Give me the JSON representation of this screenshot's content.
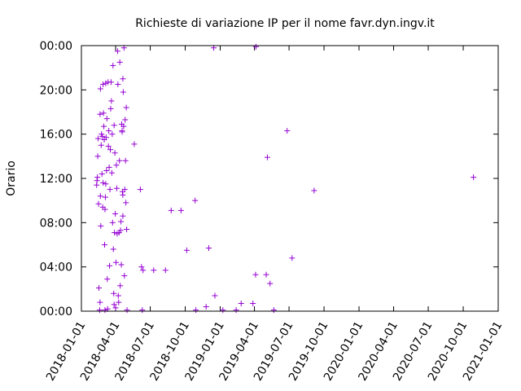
{
  "chart_data": {
    "type": "scatter",
    "title": "Richieste di variazione IP per il nome favr.dyn.ingv.it",
    "xlabel": "",
    "ylabel": "Orario",
    "xlim": [
      "2018-01-01",
      "2021-01-01"
    ],
    "ylim": [
      0,
      24
    ],
    "x_ticks": [
      "2018-01-01",
      "2018-04-01",
      "2018-07-01",
      "2018-10-01",
      "2019-01-01",
      "2019-04-01",
      "2019-07-01",
      "2019-10-01",
      "2020-01-01",
      "2020-04-01",
      "2020-07-01",
      "2020-10-01",
      "2021-01-01"
    ],
    "y_ticks": [
      "00:00",
      "04:00",
      "08:00",
      "12:00",
      "16:00",
      "20:00",
      "00:00"
    ],
    "y_tick_values": [
      0,
      4,
      8,
      12,
      16,
      20,
      24
    ],
    "grid": false,
    "marker": "+",
    "color": "#9400d3",
    "points": [
      {
        "x": "2018-02-10",
        "y": 11.4
      },
      {
        "x": "2018-02-11",
        "y": 11.8
      },
      {
        "x": "2018-02-12",
        "y": 12.1
      },
      {
        "x": "2018-02-13",
        "y": 14.0
      },
      {
        "x": "2018-02-14",
        "y": 15.6
      },
      {
        "x": "2018-02-15",
        "y": 9.7
      },
      {
        "x": "2018-02-16",
        "y": 2.1
      },
      {
        "x": "2018-02-18",
        "y": 0.1
      },
      {
        "x": "2018-02-19",
        "y": 0.8
      },
      {
        "x": "2018-02-19",
        "y": 17.8
      },
      {
        "x": "2018-02-20",
        "y": 20.1
      },
      {
        "x": "2018-02-20",
        "y": 10.4
      },
      {
        "x": "2018-02-21",
        "y": 7.7
      },
      {
        "x": "2018-02-22",
        "y": 15.0
      },
      {
        "x": "2018-02-23",
        "y": 16.0
      },
      {
        "x": "2018-02-24",
        "y": 12.4
      },
      {
        "x": "2018-02-25",
        "y": 15.8
      },
      {
        "x": "2018-02-26",
        "y": 9.4
      },
      {
        "x": "2018-02-27",
        "y": 11.6
      },
      {
        "x": "2018-02-27",
        "y": 20.5
      },
      {
        "x": "2018-02-28",
        "y": 17.9
      },
      {
        "x": "2018-03-01",
        "y": 16.7
      },
      {
        "x": "2018-03-02",
        "y": 15.5
      },
      {
        "x": "2018-03-03",
        "y": 6.0
      },
      {
        "x": "2018-03-04",
        "y": 9.2
      },
      {
        "x": "2018-03-04",
        "y": 0.1
      },
      {
        "x": "2018-03-05",
        "y": 10.3
      },
      {
        "x": "2018-03-06",
        "y": 11.5
      },
      {
        "x": "2018-03-06",
        "y": 20.6
      },
      {
        "x": "2018-03-07",
        "y": 15.7
      },
      {
        "x": "2018-03-08",
        "y": 12.7
      },
      {
        "x": "2018-03-09",
        "y": 17.4
      },
      {
        "x": "2018-03-10",
        "y": 2.9
      },
      {
        "x": "2018-03-11",
        "y": 0.2
      },
      {
        "x": "2018-03-12",
        "y": 20.7
      },
      {
        "x": "2018-03-13",
        "y": 14.9
      },
      {
        "x": "2018-03-14",
        "y": 16.3
      },
      {
        "x": "2018-03-15",
        "y": 13.0
      },
      {
        "x": "2018-03-16",
        "y": 4.1
      },
      {
        "x": "2018-03-17",
        "y": 11.0
      },
      {
        "x": "2018-03-18",
        "y": 14.6
      },
      {
        "x": "2018-03-19",
        "y": 18.3
      },
      {
        "x": "2018-03-20",
        "y": 20.7
      },
      {
        "x": "2018-03-21",
        "y": 19.0
      },
      {
        "x": "2018-03-22",
        "y": 12.5
      },
      {
        "x": "2018-03-23",
        "y": 16.0
      },
      {
        "x": "2018-03-24",
        "y": 8.0
      },
      {
        "x": "2018-03-25",
        "y": 22.2
      },
      {
        "x": "2018-03-26",
        "y": 5.6
      },
      {
        "x": "2018-03-27",
        "y": 1.6
      },
      {
        "x": "2018-03-28",
        "y": 0.6
      },
      {
        "x": "2018-03-28",
        "y": 16.8
      },
      {
        "x": "2018-03-29",
        "y": 7.1
      },
      {
        "x": "2018-03-30",
        "y": 14.3
      },
      {
        "x": "2018-03-31",
        "y": 8.8
      },
      {
        "x": "2018-04-01",
        "y": 0.3
      },
      {
        "x": "2018-04-02",
        "y": 4.4
      },
      {
        "x": "2018-04-03",
        "y": 13.2
      },
      {
        "x": "2018-04-04",
        "y": 11.1
      },
      {
        "x": "2018-04-05",
        "y": 7.0
      },
      {
        "x": "2018-04-06",
        "y": 23.5
      },
      {
        "x": "2018-04-07",
        "y": 20.5
      },
      {
        "x": "2018-04-08",
        "y": 1.4
      },
      {
        "x": "2018-04-09",
        "y": 0.8
      },
      {
        "x": "2018-04-10",
        "y": 7.1
      },
      {
        "x": "2018-04-11",
        "y": 13.6
      },
      {
        "x": "2018-04-12",
        "y": 22.5
      },
      {
        "x": "2018-04-13",
        "y": 2.3
      },
      {
        "x": "2018-04-14",
        "y": 7.3
      },
      {
        "x": "2018-04-15",
        "y": 8.1
      },
      {
        "x": "2018-04-16",
        "y": 4.2
      },
      {
        "x": "2018-04-17",
        "y": 16.9
      },
      {
        "x": "2018-04-18",
        "y": 16.3
      },
      {
        "x": "2018-04-19",
        "y": 10.8
      },
      {
        "x": "2018-04-20",
        "y": 21.0
      },
      {
        "x": "2018-04-21",
        "y": 19.8
      },
      {
        "x": "2018-04-22",
        "y": 16.7
      },
      {
        "x": "2018-04-23",
        "y": 23.8
      },
      {
        "x": "2018-04-24",
        "y": 3.2
      },
      {
        "x": "2018-04-25",
        "y": 11.0
      },
      {
        "x": "2018-04-26",
        "y": 17.3
      },
      {
        "x": "2018-04-27",
        "y": 13.6
      },
      {
        "x": "2018-04-28",
        "y": 9.8
      },
      {
        "x": "2018-04-29",
        "y": 18.4
      },
      {
        "x": "2018-04-30",
        "y": 7.4
      },
      {
        "x": "2018-05-01",
        "y": 0.1
      },
      {
        "x": "2018-04-20",
        "y": 10.5
      },
      {
        "x": "2018-04-20",
        "y": 8.6
      },
      {
        "x": "2018-04-18",
        "y": 16.2
      },
      {
        "x": "2018-05-20",
        "y": 15.1
      },
      {
        "x": "2018-06-05",
        "y": 11.0
      },
      {
        "x": "2018-06-08",
        "y": 4.0
      },
      {
        "x": "2018-06-10",
        "y": 0.1
      },
      {
        "x": "2018-06-12",
        "y": 3.7
      },
      {
        "x": "2018-07-10",
        "y": 3.7
      },
      {
        "x": "2018-08-10",
        "y": 3.7
      },
      {
        "x": "2018-08-25",
        "y": 9.1
      },
      {
        "x": "2018-09-20",
        "y": 9.1
      },
      {
        "x": "2018-10-05",
        "y": 5.5
      },
      {
        "x": "2018-10-27",
        "y": 10.0
      },
      {
        "x": "2018-10-29",
        "y": 0.1
      },
      {
        "x": "2018-11-25",
        "y": 0.4
      },
      {
        "x": "2018-12-02",
        "y": 5.7
      },
      {
        "x": "2018-12-18",
        "y": 1.4
      },
      {
        "x": "2018-12-15",
        "y": 23.8
      },
      {
        "x": "2019-01-08",
        "y": 0.1
      },
      {
        "x": "2019-02-12",
        "y": 0.1
      },
      {
        "x": "2019-02-25",
        "y": 0.7
      },
      {
        "x": "2019-03-28",
        "y": 0.7
      },
      {
        "x": "2019-04-04",
        "y": 3.3
      },
      {
        "x": "2019-04-05",
        "y": 23.9
      },
      {
        "x": "2019-05-02",
        "y": 3.3
      },
      {
        "x": "2019-05-12",
        "y": 2.5
      },
      {
        "x": "2019-05-05",
        "y": 13.9
      },
      {
        "x": "2019-05-22",
        "y": 0.1
      },
      {
        "x": "2019-06-26",
        "y": 16.3
      },
      {
        "x": "2019-07-09",
        "y": 4.8
      },
      {
        "x": "2019-09-05",
        "y": 10.9
      },
      {
        "x": "2020-10-28",
        "y": 12.1
      }
    ]
  }
}
